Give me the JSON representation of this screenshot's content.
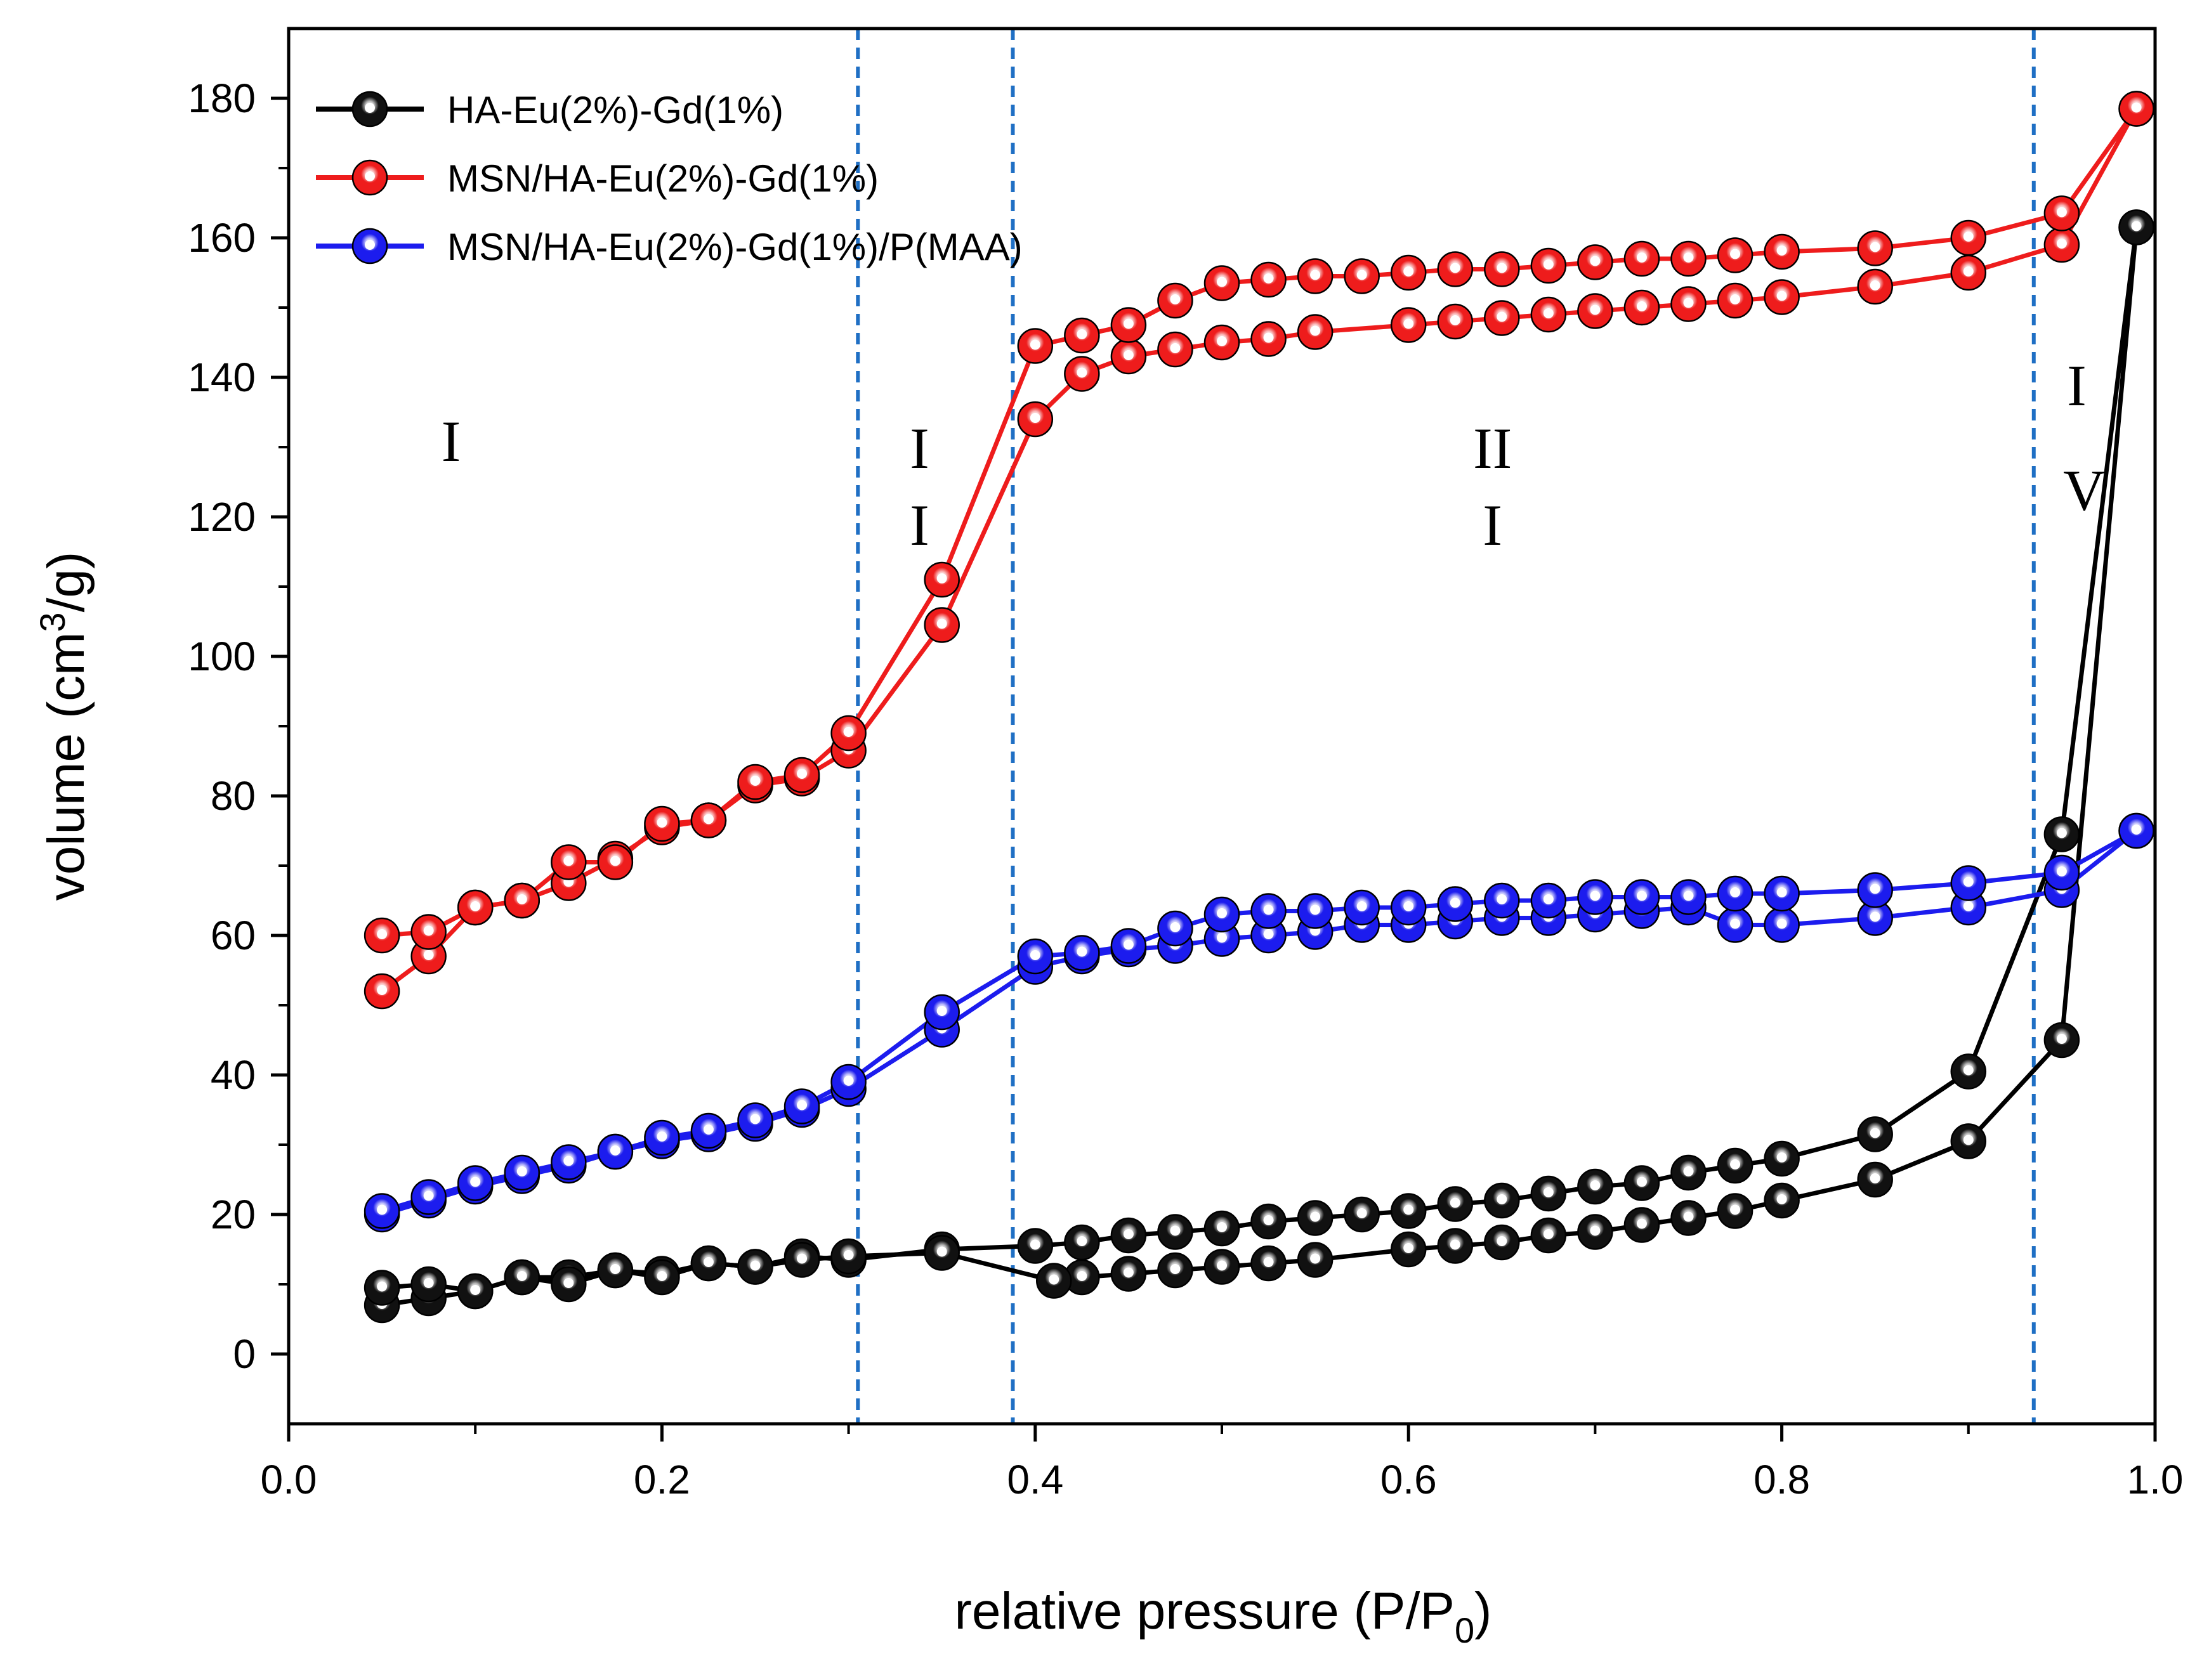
{
  "chart_data": {
    "type": "line",
    "title": "",
    "xlabel": "relative pressure  (P/P",
    "xlabel_sub": "0",
    "xlabel_close": ")",
    "ylabel": "volume (cm",
    "ylabel_sup": "3",
    "ylabel_close": "/g)",
    "xlim": [
      0.0,
      1.0
    ],
    "ylim": [
      -10,
      190
    ],
    "x_ticks": [
      0.0,
      0.2,
      0.4,
      0.6,
      0.8,
      1.0
    ],
    "x_tick_labels": [
      "0.0",
      "0.2",
      "0.4",
      "0.6",
      "0.8",
      "1.0"
    ],
    "y_ticks": [
      0,
      20,
      40,
      60,
      80,
      100,
      120,
      140,
      160,
      180
    ],
    "y_tick_labels": [
      "0",
      "20",
      "40",
      "60",
      "80",
      "100",
      "120",
      "140",
      "160",
      "180"
    ],
    "legend_position": "top-left",
    "grid": false,
    "dashed_lines_x": [
      0.305,
      0.388,
      0.935
    ],
    "dashed_line_color": "#1f6fc4",
    "region_labels": [
      {
        "text": "I",
        "x": 0.087,
        "y": 128
      },
      {
        "text": "I",
        "x": 0.338,
        "y": 127
      },
      {
        "text": "I",
        "x": 0.338,
        "y": 116
      },
      {
        "text": "II",
        "x": 0.645,
        "y": 127
      },
      {
        "text": "I",
        "x": 0.645,
        "y": 116
      },
      {
        "text": "I",
        "x": 0.958,
        "y": 136
      },
      {
        "text": "V",
        "x": 0.962,
        "y": 121
      }
    ],
    "series": [
      {
        "name": "HA-Eu(2%)-Gd(1%)",
        "color": "#000000",
        "marker_fill": "#111111",
        "branches": [
          {
            "x": [
              0.05,
              0.075,
              0.1,
              0.125,
              0.15,
              0.175,
              0.2,
              0.225,
              0.25,
              0.275,
              0.3,
              0.35,
              0.4,
              0.425,
              0.45,
              0.475,
              0.5,
              0.525,
              0.55,
              0.575,
              0.6,
              0.625,
              0.65,
              0.675,
              0.7,
              0.725,
              0.75,
              0.775,
              0.8,
              0.85,
              0.9,
              0.95,
              0.99
            ],
            "y": [
              7,
              8,
              9,
              11,
              11,
              12,
              11.5,
              13,
              12.5,
              14,
              13.5,
              15,
              15.5,
              16,
              17,
              17.5,
              18,
              19,
              19.5,
              20,
              20.5,
              21.5,
              22,
              23,
              24,
              24.5,
              26,
              27,
              28,
              31.5,
              40.5,
              74.5,
              161.5
            ]
          },
          {
            "x": [
              0.99,
              0.95,
              0.9,
              0.85,
              0.8,
              0.775,
              0.75,
              0.725,
              0.7,
              0.675,
              0.65,
              0.625,
              0.6,
              0.55,
              0.525,
              0.5,
              0.475,
              0.45,
              0.425,
              0.41,
              0.35,
              0.3,
              0.275,
              0.25,
              0.225,
              0.2,
              0.175,
              0.15,
              0.125,
              0.1,
              0.075,
              0.05
            ],
            "y": [
              161.5,
              45,
              30.5,
              25,
              22,
              20.5,
              19.5,
              18.5,
              17.5,
              17,
              16,
              15.5,
              15,
              13.5,
              13,
              12.5,
              12,
              11.5,
              11,
              10.5,
              14.5,
              14,
              13.5,
              12.5,
              13,
              11,
              12,
              10,
              11,
              9,
              10,
              9.5
            ]
          }
        ]
      },
      {
        "name": "MSN/HA-Eu(2%)-Gd(1%)",
        "color": "#ee1c1c",
        "marker_fill": "#ee1c1c",
        "branches": [
          {
            "x": [
              0.05,
              0.075,
              0.1,
              0.125,
              0.15,
              0.175,
              0.2,
              0.225,
              0.25,
              0.275,
              0.3,
              0.35,
              0.4,
              0.425,
              0.45,
              0.475,
              0.5,
              0.525,
              0.55,
              0.6,
              0.625,
              0.65,
              0.675,
              0.7,
              0.725,
              0.75,
              0.775,
              0.8,
              0.85,
              0.9,
              0.95,
              0.99
            ],
            "y": [
              52,
              57,
              64,
              65,
              67.5,
              71,
              75.5,
              76.5,
              81.5,
              82.5,
              86.5,
              104.5,
              134,
              140.5,
              143,
              144,
              145,
              145.5,
              146.5,
              147.5,
              148,
              148.5,
              149,
              149.5,
              150,
              150.5,
              151,
              151.5,
              153,
              155,
              159,
              178.5
            ]
          },
          {
            "x": [
              0.99,
              0.95,
              0.9,
              0.85,
              0.8,
              0.775,
              0.75,
              0.725,
              0.7,
              0.675,
              0.65,
              0.625,
              0.6,
              0.575,
              0.55,
              0.525,
              0.5,
              0.475,
              0.45,
              0.425,
              0.4,
              0.35,
              0.3,
              0.275,
              0.25,
              0.225,
              0.2,
              0.175,
              0.15,
              0.125,
              0.1,
              0.075,
              0.05
            ],
            "y": [
              178.5,
              163.5,
              160,
              158.5,
              158,
              157.5,
              157,
              157,
              156.5,
              156,
              155.5,
              155.5,
              155,
              154.5,
              154.5,
              154,
              153.5,
              151,
              147.5,
              146,
              144.5,
              111,
              89,
              83,
              82,
              76.5,
              76,
              70.5,
              70.5,
              65,
              64,
              60.5,
              60
            ]
          }
        ]
      },
      {
        "name": "MSN/HA-Eu(2%)-Gd(1%)/P(MAA)",
        "color": "#1c1cee",
        "marker_fill": "#1c1cee",
        "branches": [
          {
            "x": [
              0.05,
              0.075,
              0.1,
              0.125,
              0.15,
              0.175,
              0.2,
              0.225,
              0.25,
              0.275,
              0.3,
              0.35,
              0.4,
              0.425,
              0.45,
              0.475,
              0.5,
              0.525,
              0.55,
              0.575,
              0.6,
              0.625,
              0.65,
              0.675,
              0.7,
              0.725,
              0.75,
              0.775,
              0.8,
              0.85,
              0.9,
              0.95,
              0.99
            ],
            "y": [
              20,
              22,
              24,
              25.5,
              27,
              29,
              30.5,
              31.5,
              33,
              35,
              38,
              46.5,
              55.5,
              57,
              58,
              58.5,
              59.5,
              60,
              60.5,
              61.5,
              61.5,
              62,
              62.5,
              62.5,
              63,
              63.5,
              64,
              61.5,
              61.5,
              62.5,
              64,
              66.5,
              75
            ]
          },
          {
            "x": [
              0.99,
              0.95,
              0.9,
              0.85,
              0.8,
              0.775,
              0.75,
              0.725,
              0.7,
              0.675,
              0.65,
              0.625,
              0.6,
              0.575,
              0.55,
              0.525,
              0.5,
              0.475,
              0.45,
              0.425,
              0.4,
              0.35,
              0.3,
              0.275,
              0.25,
              0.225,
              0.2,
              0.175,
              0.15,
              0.125,
              0.1,
              0.075,
              0.05
            ],
            "y": [
              75,
              69,
              67.5,
              66.5,
              66,
              66,
              65.5,
              65.5,
              65.5,
              65,
              65,
              64.5,
              64,
              64,
              63.5,
              63.5,
              63,
              61,
              58.5,
              57.5,
              57,
              49,
              39,
              35.5,
              33.5,
              32,
              31,
              29,
              27.5,
              26,
              24.5,
              22.5,
              20.5
            ]
          }
        ]
      }
    ]
  }
}
